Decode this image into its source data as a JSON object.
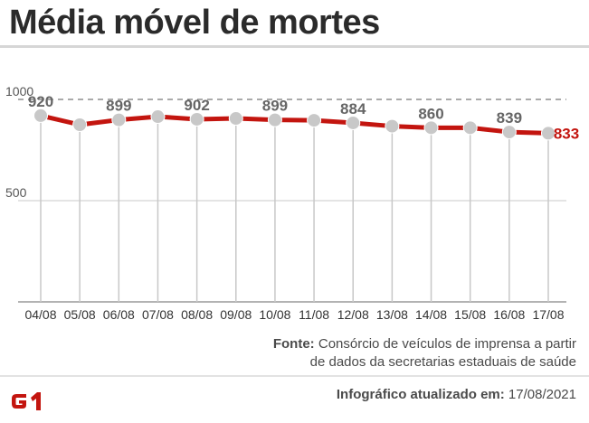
{
  "title": "Média móvel de mortes",
  "source": {
    "label": "Fonte:",
    "text_line1": "Consórcio de veículos de imprensa a partir",
    "text_line2": "de dados da secretarias estaduais de saúde"
  },
  "footer": {
    "updated_label": "Infográfico atualizado em:",
    "updated_date": "17/08/2021",
    "logo_text": "G1"
  },
  "colors": {
    "line": "#c3150f",
    "point": "#c8c8c8",
    "label": "#666666",
    "last_label": "#c3150f",
    "gridline": "#c8c8c8",
    "dashed_gridline": "#555555",
    "logo": "#c3150f"
  },
  "chart_data": {
    "type": "line",
    "title": "Média móvel de mortes",
    "categories": [
      "04/08",
      "05/08",
      "06/08",
      "07/08",
      "08/08",
      "09/08",
      "10/08",
      "11/08",
      "12/08",
      "13/08",
      "14/08",
      "15/08",
      "16/08",
      "17/08"
    ],
    "values": [
      920,
      875,
      899,
      915,
      902,
      906,
      899,
      897,
      884,
      868,
      860,
      860,
      839,
      833
    ],
    "labels": [
      "920",
      "",
      "899",
      "",
      "902",
      "",
      "899",
      "",
      "884",
      "",
      "860",
      "",
      "839",
      "833"
    ],
    "yticks": [
      500,
      1000
    ],
    "ylim": [
      0,
      1000
    ],
    "xlabel": "",
    "ylabel": ""
  }
}
